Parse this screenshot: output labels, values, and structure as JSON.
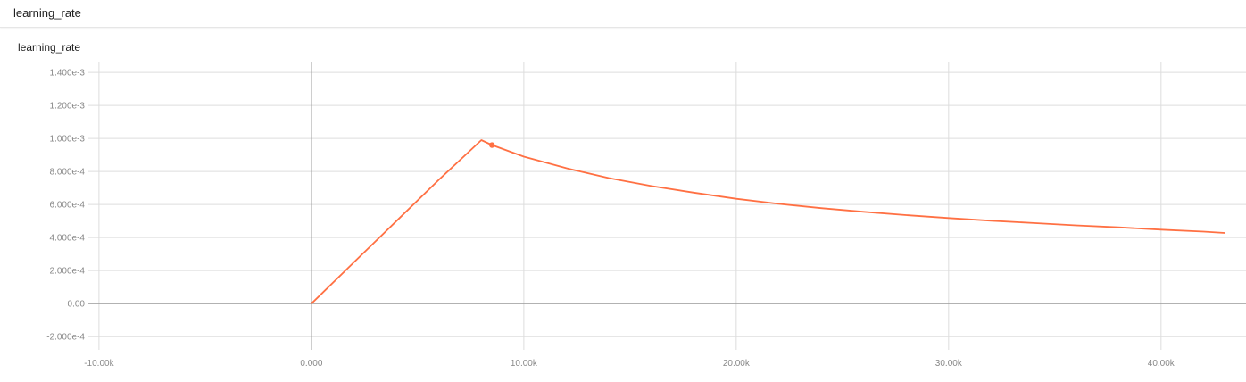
{
  "section": {
    "title": "learning_rate"
  },
  "card": {
    "title": "learning_rate"
  },
  "toolbar": {
    "buttons": [
      {
        "icon": "fullscreen-icon"
      },
      {
        "icon": "data-table-icon"
      },
      {
        "icon": "fit-domain-icon"
      }
    ]
  },
  "colors": {
    "series": "#ff7043",
    "grid": "#dddddd",
    "axis": "#999999",
    "toolbar_icon": "#1e88e5"
  },
  "chart_data": {
    "type": "line",
    "title": "learning_rate",
    "xlabel": "",
    "ylabel": "",
    "xlim": [
      -10500,
      44000
    ],
    "ylim": [
      -0.00028,
      0.00146
    ],
    "x_ticks": [
      {
        "value": -10000,
        "label": "-10.00k"
      },
      {
        "value": 0,
        "label": "0.000"
      },
      {
        "value": 10000,
        "label": "10.00k"
      },
      {
        "value": 20000,
        "label": "20.00k"
      },
      {
        "value": 30000,
        "label": "30.00k"
      },
      {
        "value": 40000,
        "label": "40.00k"
      }
    ],
    "y_ticks": [
      {
        "value": -0.0002,
        "label": "-2.000e-4"
      },
      {
        "value": 0,
        "label": "0.00"
      },
      {
        "value": 0.0002,
        "label": "2.000e-4"
      },
      {
        "value": 0.0004,
        "label": "4.000e-4"
      },
      {
        "value": 0.0006,
        "label": "6.000e-4"
      },
      {
        "value": 0.0008,
        "label": "8.000e-4"
      },
      {
        "value": 0.001,
        "label": "1.000e-3"
      },
      {
        "value": 0.0012,
        "label": "1.200e-3"
      },
      {
        "value": 0.0014,
        "label": "1.400e-3"
      }
    ],
    "grid": true,
    "series": [
      {
        "x": [
          0,
          2000,
          4000,
          6000,
          8000,
          8500,
          10000,
          12000,
          14000,
          16000,
          18000,
          20000,
          22000,
          24000,
          26000,
          28000,
          30000,
          32000,
          34000,
          36000,
          38000,
          40000,
          42000,
          43000
        ],
        "y": [
          0,
          0.00025,
          0.0005,
          0.00075,
          0.00099,
          0.00096,
          0.00089,
          0.00082,
          0.00076,
          0.000712,
          0.000672,
          0.000635,
          0.000604,
          0.000578,
          0.000556,
          0.000536,
          0.000518,
          0.000502,
          0.000488,
          0.000474,
          0.000462,
          0.000448,
          0.000436,
          0.000428
        ]
      }
    ],
    "highlight_point": {
      "x": 8500,
      "y": 0.00096
    }
  }
}
